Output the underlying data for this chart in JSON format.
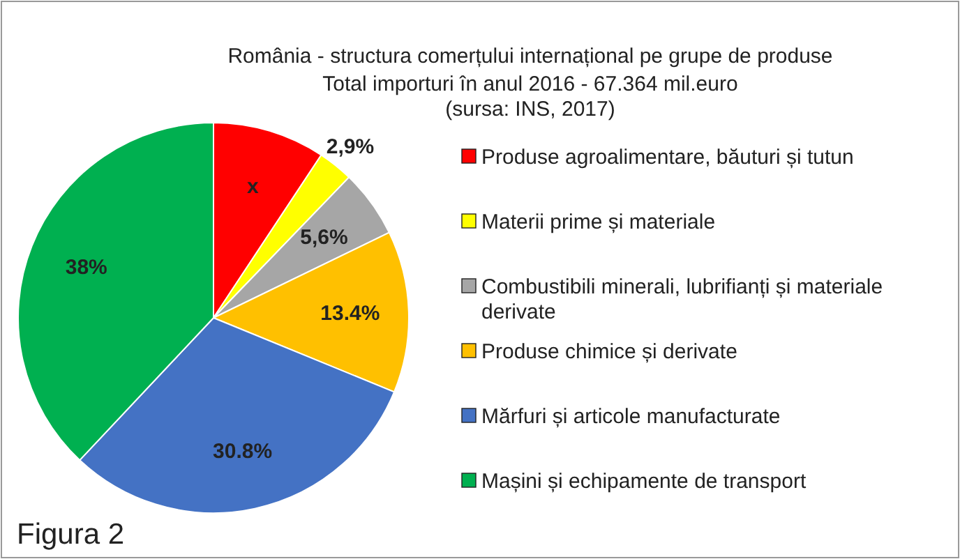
{
  "chart_data": {
    "type": "pie",
    "title": "România - structura comerțului internațional pe grupe de produse",
    "subtitle": "Total importuri în anul 2016 - 67.364 mil.euro\n(sursa: INS, 2017)",
    "categories": [
      "Produse agroalimentare, băuturi și tutun",
      "Materii prime și materiale",
      "Combustibili minerali, lubrifianți și materiale derivate",
      "Produse chimice și derivate",
      "Mărfuri și articole manufacturate",
      "Mașini și echipamente de transport"
    ],
    "values": [
      9.3,
      2.9,
      5.6,
      13.4,
      30.8,
      38
    ],
    "value_labels": [
      "x",
      "2,9%",
      "5,6%",
      "13.4%",
      "30.8%",
      "38%"
    ],
    "colors": [
      "#ff0000",
      "#ffff00",
      "#a6a6a6",
      "#ffc000",
      "#4472c4",
      "#00b050"
    ],
    "legend": "right",
    "annotations": [
      "Figura 2"
    ]
  }
}
